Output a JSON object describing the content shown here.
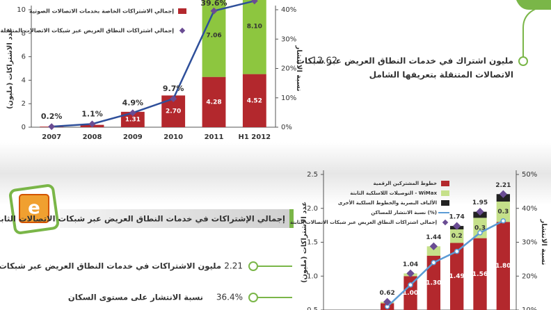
{
  "chart_data": [
    {
      "type": "bar",
      "categories": [
        "2007",
        "2008",
        "2009",
        "2010",
        "2011",
        "H1 2012"
      ],
      "y_label": "عدد الاشتراكات (مليون)",
      "y2_label": "نسبة الانتشار",
      "ylim": [
        0,
        10
      ],
      "yticks": [
        0,
        2,
        4,
        6,
        8,
        10
      ],
      "y2lim": [
        0,
        40
      ],
      "y2ticks": [
        {
          "value": 0,
          "label": "0%"
        },
        {
          "value": 10,
          "label": "10%"
        },
        {
          "value": 20,
          "label": "20%"
        },
        {
          "value": 30,
          "label": "30%"
        },
        {
          "value": 40,
          "label": "40%"
        }
      ],
      "series": [
        {
          "name": "إجمالي الاشتراكات الخاصة بخدمات الاتصالات الصوتية",
          "kind": "bar",
          "color": "#b3282d",
          "values": [
            0.05,
            0.2,
            1.31,
            2.7,
            4.28,
            4.52
          ],
          "value_labels": [
            null,
            null,
            "1.31",
            "2.70",
            "4.28",
            "4.52"
          ]
        },
        {
          "kind": "bar",
          "color": "#8dc63f",
          "values": [
            0,
            0,
            0,
            0,
            7.06,
            8.1
          ],
          "value_labels": [
            null,
            null,
            null,
            null,
            "7.06",
            "8.10"
          ]
        },
        {
          "name": "إجمالي اشتراكات النطاق العريض عبر شبكات الاتصالات المتنقلة",
          "kind": "line",
          "axis": "y2",
          "color": "#2e4f9a",
          "marker_color": "#6a4c93",
          "values": [
            0.2,
            1.1,
            4.9,
            9.7,
            39.6,
            43
          ],
          "value_labels": [
            "0.2%",
            "1.1%",
            "4.9%",
            "9.7%",
            "39.6%",
            null
          ]
        }
      ]
    },
    {
      "type": "bar",
      "categories": [
        null,
        null,
        null,
        null,
        null,
        null
      ],
      "y_label": "عدد الاشتراكات (مليون)",
      "y2_label": "نسبة الانتشار",
      "ylim": [
        0.5,
        2.5
      ],
      "yticks": [
        0.5,
        {
          "value": 1,
          "label": "1.0"
        },
        1.5,
        {
          "value": 2,
          "label": "2.0"
        },
        2.5
      ],
      "y2lim": [
        10,
        50
      ],
      "y2ticks": [
        {
          "value": 10,
          "label": "10%"
        },
        {
          "value": 20,
          "label": "20%"
        },
        {
          "value": 30,
          "label": "30%"
        },
        {
          "value": 40,
          "label": "40%"
        },
        {
          "value": 50,
          "label": "50%"
        }
      ],
      "series": [
        {
          "name": "خطوط المشتركين الرقمية",
          "kind": "bar",
          "color": "#b3282d",
          "values": [
            0.6,
            1.0,
            1.3,
            1.49,
            1.56,
            1.8
          ],
          "value_labels": [
            null,
            "1.00",
            "1.30",
            "1.49",
            "1.56",
            "1.80"
          ]
        },
        {
          "name": "التوصيلات اللاسلكية الثابتة - WiMax",
          "kind": "bar",
          "color": "#c5e08a",
          "values": [
            0.02,
            0.04,
            0.14,
            0.2,
            0.3,
            0.3
          ],
          "value_labels": [
            null,
            null,
            null,
            "0.2",
            "0.3",
            "0.3"
          ]
        },
        {
          "name": "الألياف البصرية والخطوط السلكية الأخرى",
          "kind": "bar",
          "color": "#222222",
          "values": [
            0,
            0,
            0,
            0.05,
            0.09,
            0.11
          ],
          "value_labels": [
            null,
            null,
            null,
            null,
            null,
            null
          ]
        },
        {
          "name": "نسبة الانتشار للمساكن (%)",
          "kind": "line",
          "axis": "y2",
          "color": "#5b9bd5",
          "marker_color": "#ffffff",
          "values": [
            11,
            17.4,
            24,
            27.3,
            32.8,
            36.3
          ],
          "value_labels": [
            null,
            null,
            null,
            null,
            null,
            null
          ]
        },
        {
          "name": "إجمالي اشتراكات النطاق العريض عبر شبكات الاتصالات الثابتة",
          "kind": "marker",
          "color": "#6a4c93",
          "values": [
            0.62,
            1.04,
            1.44,
            1.74,
            1.95,
            2.21
          ],
          "data_labels": true
        }
      ]
    }
  ],
  "mobile_note": {
    "value": "12.62",
    "text": "مليون اشتراك في خدمات النطاق العريض عبر شبكات",
    "text2": "الاتصالات المتنقلة بتعريفها الشامل"
  },
  "fixed_title": "إجمالي الإشتراكات في خدمات النطاق العريض عبر شبكات الاتصالات الثابتة",
  "stats": [
    {
      "value": "2.21",
      "text": "مليون الاشتراكات في خدمات النطاق العريض عبر شبكات الاتصالات الثابتة"
    },
    {
      "value": "36.4%",
      "text": "نسبة الانتشار على مستوى السكان"
    }
  ]
}
